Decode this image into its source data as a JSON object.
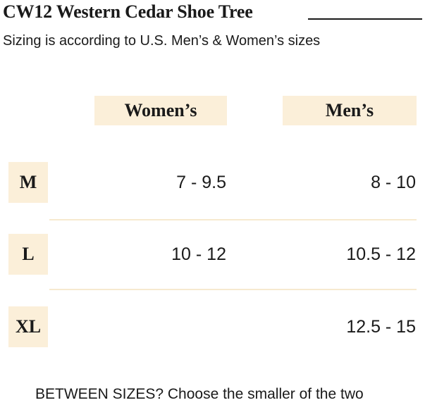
{
  "header": {
    "title": "CW12 Western Cedar Shoe Tree",
    "subtitle": "Sizing is according to U.S. Men’s & Women’s sizes"
  },
  "table": {
    "columns": [
      "Women’s",
      "Men’s"
    ],
    "rows": [
      {
        "size": "M",
        "womens": "7 - 9.5",
        "mens": "8 - 10"
      },
      {
        "size": "L",
        "womens": "10 - 12",
        "mens": "10.5 - 12"
      },
      {
        "size": "XL",
        "womens": "",
        "mens": "12.5 - 15"
      }
    ]
  },
  "footer": {
    "note": "BETWEEN SIZES? Choose the smaller of the two"
  },
  "colors": {
    "highlight": "#fbefd9",
    "text": "#1a1a1a"
  }
}
